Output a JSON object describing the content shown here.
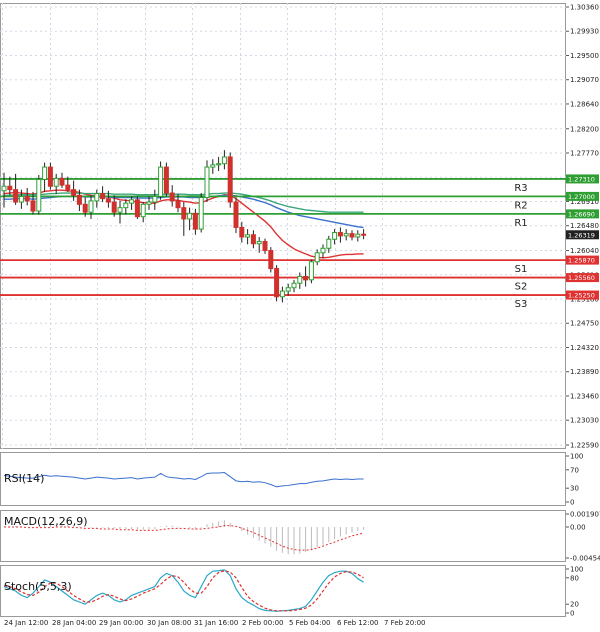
{
  "colors": {
    "resistance": "#2f9e33",
    "support": "#e03131",
    "bull_candle": "#2f9e33",
    "bear_candle": "#d0312d",
    "ma_fast": "#e03131",
    "ma_mid": "#3a6fd0",
    "ma_slow": "#3aa77a",
    "rsi": "#3a6fd0",
    "macd_hist": "#bbbbbb",
    "macd_signal": "#e03131",
    "stoch_k": "#2aa7c9",
    "stoch_d": "#e03131",
    "grid": "#cfd8e3",
    "price_tag": "#222222"
  },
  "chart_data": [
    {
      "type": "candlestick",
      "name": "price",
      "ylim": [
        1.2259,
        1.3036
      ],
      "y_ticks": [
        "1.30360",
        "1.29930",
        "1.29500",
        "1.29070",
        "1.28640",
        "1.28200",
        "1.27770",
        "1.27340",
        "1.26910",
        "1.26480",
        "1.26040",
        "1.25610",
        "1.25180",
        "1.24750",
        "1.24320",
        "1.23890",
        "1.23460",
        "1.23030",
        "1.22590"
      ],
      "x_labels": [
        "24 Jan 12:00",
        "28 Jan 04:00",
        "29 Jan 00:00",
        "30 Jan 08:00",
        "31 Jan 16:00",
        "2 Feb 00:00",
        "5 Feb 04:00",
        "6 Feb 12:00",
        "7 Feb 20:00"
      ],
      "candles": [
        {
          "o": 1.271,
          "h": 1.2742,
          "l": 1.268,
          "c": 1.2718
        },
        {
          "o": 1.2718,
          "h": 1.2735,
          "l": 1.2702,
          "c": 1.2712
        },
        {
          "o": 1.2712,
          "h": 1.274,
          "l": 1.2685,
          "c": 1.269
        },
        {
          "o": 1.269,
          "h": 1.2712,
          "l": 1.2678,
          "c": 1.27
        },
        {
          "o": 1.27,
          "h": 1.2715,
          "l": 1.2684,
          "c": 1.2692
        },
        {
          "o": 1.2692,
          "h": 1.2708,
          "l": 1.2668,
          "c": 1.2674
        },
        {
          "o": 1.2674,
          "h": 1.2738,
          "l": 1.2668,
          "c": 1.273
        },
        {
          "o": 1.273,
          "h": 1.276,
          "l": 1.2708,
          "c": 1.2752
        },
        {
          "o": 1.2752,
          "h": 1.276,
          "l": 1.2712,
          "c": 1.2718
        },
        {
          "o": 1.2718,
          "h": 1.274,
          "l": 1.2705,
          "c": 1.2732
        },
        {
          "o": 1.2732,
          "h": 1.2742,
          "l": 1.2715,
          "c": 1.272
        },
        {
          "o": 1.272,
          "h": 1.2735,
          "l": 1.2708,
          "c": 1.2712
        },
        {
          "o": 1.2712,
          "h": 1.2728,
          "l": 1.2692,
          "c": 1.2702
        },
        {
          "o": 1.2702,
          "h": 1.2712,
          "l": 1.2674,
          "c": 1.2686
        },
        {
          "o": 1.2686,
          "h": 1.2698,
          "l": 1.2664,
          "c": 1.2672
        },
        {
          "o": 1.2672,
          "h": 1.2702,
          "l": 1.266,
          "c": 1.2692
        },
        {
          "o": 1.2692,
          "h": 1.2712,
          "l": 1.268,
          "c": 1.2705
        },
        {
          "o": 1.2705,
          "h": 1.2718,
          "l": 1.269,
          "c": 1.2696
        },
        {
          "o": 1.2696,
          "h": 1.271,
          "l": 1.268,
          "c": 1.269
        },
        {
          "o": 1.269,
          "h": 1.2702,
          "l": 1.2664,
          "c": 1.2672
        },
        {
          "o": 1.2672,
          "h": 1.2692,
          "l": 1.2652,
          "c": 1.268
        },
        {
          "o": 1.268,
          "h": 1.2695,
          "l": 1.2668,
          "c": 1.2688
        },
        {
          "o": 1.2688,
          "h": 1.27,
          "l": 1.2676,
          "c": 1.2694
        },
        {
          "o": 1.2694,
          "h": 1.27,
          "l": 1.266,
          "c": 1.2664
        },
        {
          "o": 1.2664,
          "h": 1.269,
          "l": 1.2654,
          "c": 1.2686
        },
        {
          "o": 1.2686,
          "h": 1.27,
          "l": 1.2676,
          "c": 1.269
        },
        {
          "o": 1.269,
          "h": 1.2712,
          "l": 1.2676,
          "c": 1.27
        },
        {
          "o": 1.27,
          "h": 1.2762,
          "l": 1.2694,
          "c": 1.2752
        },
        {
          "o": 1.2752,
          "h": 1.276,
          "l": 1.27,
          "c": 1.2706
        },
        {
          "o": 1.2706,
          "h": 1.272,
          "l": 1.2682,
          "c": 1.2692
        },
        {
          "o": 1.2692,
          "h": 1.2705,
          "l": 1.2672,
          "c": 1.268
        },
        {
          "o": 1.268,
          "h": 1.269,
          "l": 1.263,
          "c": 1.266
        },
        {
          "o": 1.266,
          "h": 1.268,
          "l": 1.264,
          "c": 1.267
        },
        {
          "o": 1.267,
          "h": 1.2678,
          "l": 1.2632,
          "c": 1.2642
        },
        {
          "o": 1.2642,
          "h": 1.2706,
          "l": 1.2636,
          "c": 1.2698
        },
        {
          "o": 1.2698,
          "h": 1.2764,
          "l": 1.269,
          "c": 1.2752
        },
        {
          "o": 1.2752,
          "h": 1.2766,
          "l": 1.274,
          "c": 1.2756
        },
        {
          "o": 1.2756,
          "h": 1.277,
          "l": 1.2745,
          "c": 1.2758
        },
        {
          "o": 1.2758,
          "h": 1.2782,
          "l": 1.2748,
          "c": 1.277
        },
        {
          "o": 1.277,
          "h": 1.2778,
          "l": 1.268,
          "c": 1.269
        },
        {
          "o": 1.269,
          "h": 1.2698,
          "l": 1.2635,
          "c": 1.2645
        },
        {
          "o": 1.2645,
          "h": 1.2655,
          "l": 1.2618,
          "c": 1.2628
        },
        {
          "o": 1.2628,
          "h": 1.2642,
          "l": 1.2615,
          "c": 1.2632
        },
        {
          "o": 1.2632,
          "h": 1.264,
          "l": 1.2608,
          "c": 1.2616
        },
        {
          "o": 1.2616,
          "h": 1.2628,
          "l": 1.26,
          "c": 1.262
        },
        {
          "o": 1.262,
          "h": 1.2625,
          "l": 1.2598,
          "c": 1.2604
        },
        {
          "o": 1.2604,
          "h": 1.261,
          "l": 1.2565,
          "c": 1.2572
        },
        {
          "o": 1.2572,
          "h": 1.2578,
          "l": 1.2514,
          "c": 1.2522
        },
        {
          "o": 1.2522,
          "h": 1.254,
          "l": 1.2512,
          "c": 1.2532
        },
        {
          "o": 1.2532,
          "h": 1.2545,
          "l": 1.2524,
          "c": 1.2538
        },
        {
          "o": 1.2538,
          "h": 1.2552,
          "l": 1.253,
          "c": 1.2546
        },
        {
          "o": 1.2546,
          "h": 1.2565,
          "l": 1.2536,
          "c": 1.2558
        },
        {
          "o": 1.2558,
          "h": 1.2576,
          "l": 1.254,
          "c": 1.2552
        },
        {
          "o": 1.2552,
          "h": 1.2588,
          "l": 1.2546,
          "c": 1.2584
        },
        {
          "o": 1.2584,
          "h": 1.2606,
          "l": 1.2578,
          "c": 1.26
        },
        {
          "o": 1.26,
          "h": 1.2615,
          "l": 1.259,
          "c": 1.2608
        },
        {
          "o": 1.2608,
          "h": 1.263,
          "l": 1.26,
          "c": 1.2624
        },
        {
          "o": 1.2624,
          "h": 1.2642,
          "l": 1.2615,
          "c": 1.2636
        },
        {
          "o": 1.2636,
          "h": 1.2645,
          "l": 1.2618,
          "c": 1.263
        },
        {
          "o": 1.263,
          "h": 1.2642,
          "l": 1.2622,
          "c": 1.2634
        },
        {
          "o": 1.2634,
          "h": 1.264,
          "l": 1.2622,
          "c": 1.2628
        },
        {
          "o": 1.2628,
          "h": 1.264,
          "l": 1.262,
          "c": 1.2633
        },
        {
          "o": 1.2633,
          "h": 1.2642,
          "l": 1.2624,
          "c": 1.2631
        }
      ],
      "moving_averages": [
        {
          "color_key": "ma_fast",
          "values": [
            1.2705,
            1.2706,
            1.2707,
            1.2706,
            1.2705,
            1.2704,
            1.2706,
            1.2709,
            1.271,
            1.2711,
            1.2711,
            1.271,
            1.2709,
            1.2707,
            1.2704,
            1.2702,
            1.2701,
            1.27,
            1.2699,
            1.2697,
            1.2694,
            1.2693,
            1.2692,
            1.269,
            1.2689,
            1.2688,
            1.2688,
            1.2692,
            1.2694,
            1.2694,
            1.2693,
            1.2691,
            1.269,
            1.2688,
            1.2689,
            1.2693,
            1.2697,
            1.27,
            1.2703,
            1.2702,
            1.2696,
            1.2688,
            1.268,
            1.2672,
            1.2664,
            1.2656,
            1.2646,
            1.2633,
            1.2622,
            1.2614,
            1.2607,
            1.2602,
            1.2598,
            1.2594,
            1.2592,
            1.2591,
            1.2592,
            1.2594,
            1.2596,
            1.2597,
            1.2597,
            1.2598,
            1.2598
          ]
        },
        {
          "color_key": "ma_mid",
          "values": [
            1.2695,
            1.2695,
            1.2696,
            1.2696,
            1.2696,
            1.2695,
            1.2696,
            1.2697,
            1.2698,
            1.2699,
            1.27,
            1.27,
            1.27,
            1.27,
            1.2699,
            1.2699,
            1.2699,
            1.2699,
            1.2699,
            1.2698,
            1.2698,
            1.2698,
            1.2698,
            1.2697,
            1.2697,
            1.2697,
            1.2697,
            1.2698,
            1.2699,
            1.2699,
            1.2699,
            1.2699,
            1.2698,
            1.2698,
            1.2698,
            1.2699,
            1.27,
            1.2701,
            1.2702,
            1.2702,
            1.2701,
            1.2699,
            1.2697,
            1.2695,
            1.2692,
            1.2689,
            1.2685,
            1.268,
            1.2676,
            1.2672,
            1.2669,
            1.2666,
            1.2664,
            1.2662,
            1.266,
            1.2658,
            1.2656,
            1.2654,
            1.2652,
            1.265,
            1.2648,
            1.2646,
            1.2645
          ]
        },
        {
          "color_key": "ma_slow",
          "values": [
            1.2702,
            1.2702,
            1.2703,
            1.2703,
            1.2703,
            1.2703,
            1.2703,
            1.2704,
            1.2705,
            1.2705,
            1.2706,
            1.2706,
            1.2706,
            1.2706,
            1.2705,
            1.2705,
            1.2705,
            1.2705,
            1.2705,
            1.2704,
            1.2704,
            1.2704,
            1.2704,
            1.2703,
            1.2703,
            1.2703,
            1.2703,
            1.2704,
            1.2704,
            1.2704,
            1.2704,
            1.2704,
            1.2703,
            1.2703,
            1.2703,
            1.2704,
            1.2705,
            1.2705,
            1.2706,
            1.2706,
            1.2705,
            1.2704,
            1.2702,
            1.27,
            1.2698,
            1.2695,
            1.2692,
            1.2688,
            1.2685,
            1.2682,
            1.268,
            1.2678,
            1.2676,
            1.2675,
            1.2674,
            1.2673,
            1.2672,
            1.2672,
            1.2672,
            1.2672,
            1.2672,
            1.2672,
            1.2672
          ]
        }
      ],
      "levels": [
        {
          "name": "R3",
          "value": 1.2731,
          "label": "1.27310",
          "kind": "resistance"
        },
        {
          "name": "R2",
          "value": 1.27,
          "label": "1.27000",
          "kind": "resistance"
        },
        {
          "name": "R1",
          "value": 1.2669,
          "label": "1.26690",
          "kind": "resistance"
        },
        {
          "name": "S1",
          "value": 1.2587,
          "label": "1.25870",
          "kind": "support"
        },
        {
          "name": "S2",
          "value": 1.2556,
          "label": "1.25560",
          "kind": "support"
        },
        {
          "name": "S3",
          "value": 1.2525,
          "label": "1.25250",
          "kind": "support"
        }
      ],
      "last_price": 1.26319,
      "last_price_label": "1.26319"
    },
    {
      "type": "line",
      "name": "RSI(14)",
      "ylim": [
        0,
        100
      ],
      "y_ticks": [
        "100",
        "70",
        "30",
        "0"
      ],
      "values": [
        58,
        56,
        54,
        53,
        52,
        52,
        55,
        58,
        56,
        57,
        56,
        55,
        54,
        52,
        50,
        52,
        54,
        53,
        52,
        50,
        51,
        52,
        53,
        50,
        52,
        53,
        54,
        62,
        55,
        53,
        52,
        50,
        51,
        49,
        55,
        62,
        63,
        63,
        64,
        55,
        46,
        44,
        45,
        43,
        44,
        42,
        38,
        33,
        35,
        36,
        38,
        40,
        40,
        43,
        45,
        46,
        48,
        50,
        49,
        50,
        49,
        50,
        50
      ]
    },
    {
      "type": "bar+line",
      "name": "MACD(12,26,9)",
      "ylim": [
        -0.004546,
        0.001907
      ],
      "y_ticks": [
        "0.001907",
        "0.00",
        "-0.004546"
      ],
      "histogram": [
        0.0001,
        0.0001,
        0.00015,
        0.0001,
        5e-05,
        0.0,
        0.0001,
        0.0003,
        0.0003,
        0.00035,
        0.0003,
        0.00025,
        0.0002,
        0.0001,
        0.0,
        -0.0001,
        -5e-05,
        -0.0001,
        -0.00015,
        -0.0002,
        -0.0003,
        -0.0003,
        -0.0003,
        -0.0004,
        -0.0004,
        -0.0004,
        -0.0003,
        0.0001,
        0.0002,
        0.0002,
        0.0001,
        0.0,
        -0.0002,
        -0.0003,
        -0.0001,
        0.0004,
        0.0006,
        0.0008,
        0.001,
        0.0006,
        0.0,
        -0.0006,
        -0.0011,
        -0.0016,
        -0.002,
        -0.0024,
        -0.0029,
        -0.0035,
        -0.0038,
        -0.004,
        -0.004,
        -0.0039,
        -0.0037,
        -0.0034,
        -0.003,
        -0.0026,
        -0.0022,
        -0.0018,
        -0.0014,
        -0.0011,
        -0.0008,
        -0.0006,
        -0.0004
      ],
      "signal": [
        0.0,
        0.0,
        0.0,
        0.0,
        -0.0001,
        -0.0001,
        -0.0001,
        -0.0001,
        -0.0001,
        0.0,
        0.0,
        0.0,
        -0.0001,
        -0.0001,
        -0.0002,
        -0.0002,
        -0.0002,
        -0.0003,
        -0.0003,
        -0.0003,
        -0.0004,
        -0.0004,
        -0.0004,
        -0.0005,
        -0.0005,
        -0.0005,
        -0.0005,
        -0.0004,
        -0.0003,
        -0.0002,
        -0.0002,
        -0.0002,
        -0.0003,
        -0.0003,
        -0.0003,
        -0.0002,
        -0.0001,
        0.0,
        0.0002,
        0.0002,
        0.0001,
        -0.0002,
        -0.0005,
        -0.0008,
        -0.0012,
        -0.0016,
        -0.002,
        -0.0024,
        -0.0028,
        -0.0031,
        -0.0033,
        -0.0034,
        -0.0034,
        -0.0033,
        -0.0031,
        -0.0028,
        -0.0025,
        -0.0022,
        -0.0019,
        -0.0016,
        -0.0013,
        -0.0011,
        -0.0009
      ]
    },
    {
      "type": "line",
      "name": "Stoch(5,5,3)",
      "ylim": [
        0,
        100
      ],
      "y_ticks": [
        "100",
        "80",
        "20",
        "0"
      ],
      "k": [
        60,
        55,
        50,
        40,
        35,
        45,
        60,
        75,
        70,
        60,
        50,
        40,
        30,
        25,
        20,
        30,
        40,
        45,
        40,
        30,
        25,
        30,
        40,
        45,
        50,
        55,
        60,
        80,
        90,
        85,
        70,
        50,
        40,
        35,
        60,
        85,
        95,
        96,
        98,
        85,
        55,
        35,
        25,
        18,
        10,
        6,
        5,
        4,
        5,
        6,
        8,
        10,
        15,
        30,
        50,
        70,
        85,
        92,
        95,
        95,
        90,
        78,
        70
      ],
      "d": [
        62,
        60,
        55,
        48,
        42,
        40,
        47,
        60,
        68,
        68,
        60,
        50,
        40,
        32,
        25,
        25,
        30,
        38,
        42,
        38,
        32,
        28,
        32,
        38,
        45,
        50,
        55,
        65,
        77,
        85,
        82,
        70,
        55,
        45,
        45,
        60,
        80,
        92,
        96,
        93,
        80,
        58,
        38,
        26,
        18,
        11,
        7,
        5,
        5,
        5,
        6,
        8,
        11,
        18,
        32,
        50,
        68,
        82,
        90,
        94,
        93,
        88,
        80
      ]
    }
  ]
}
